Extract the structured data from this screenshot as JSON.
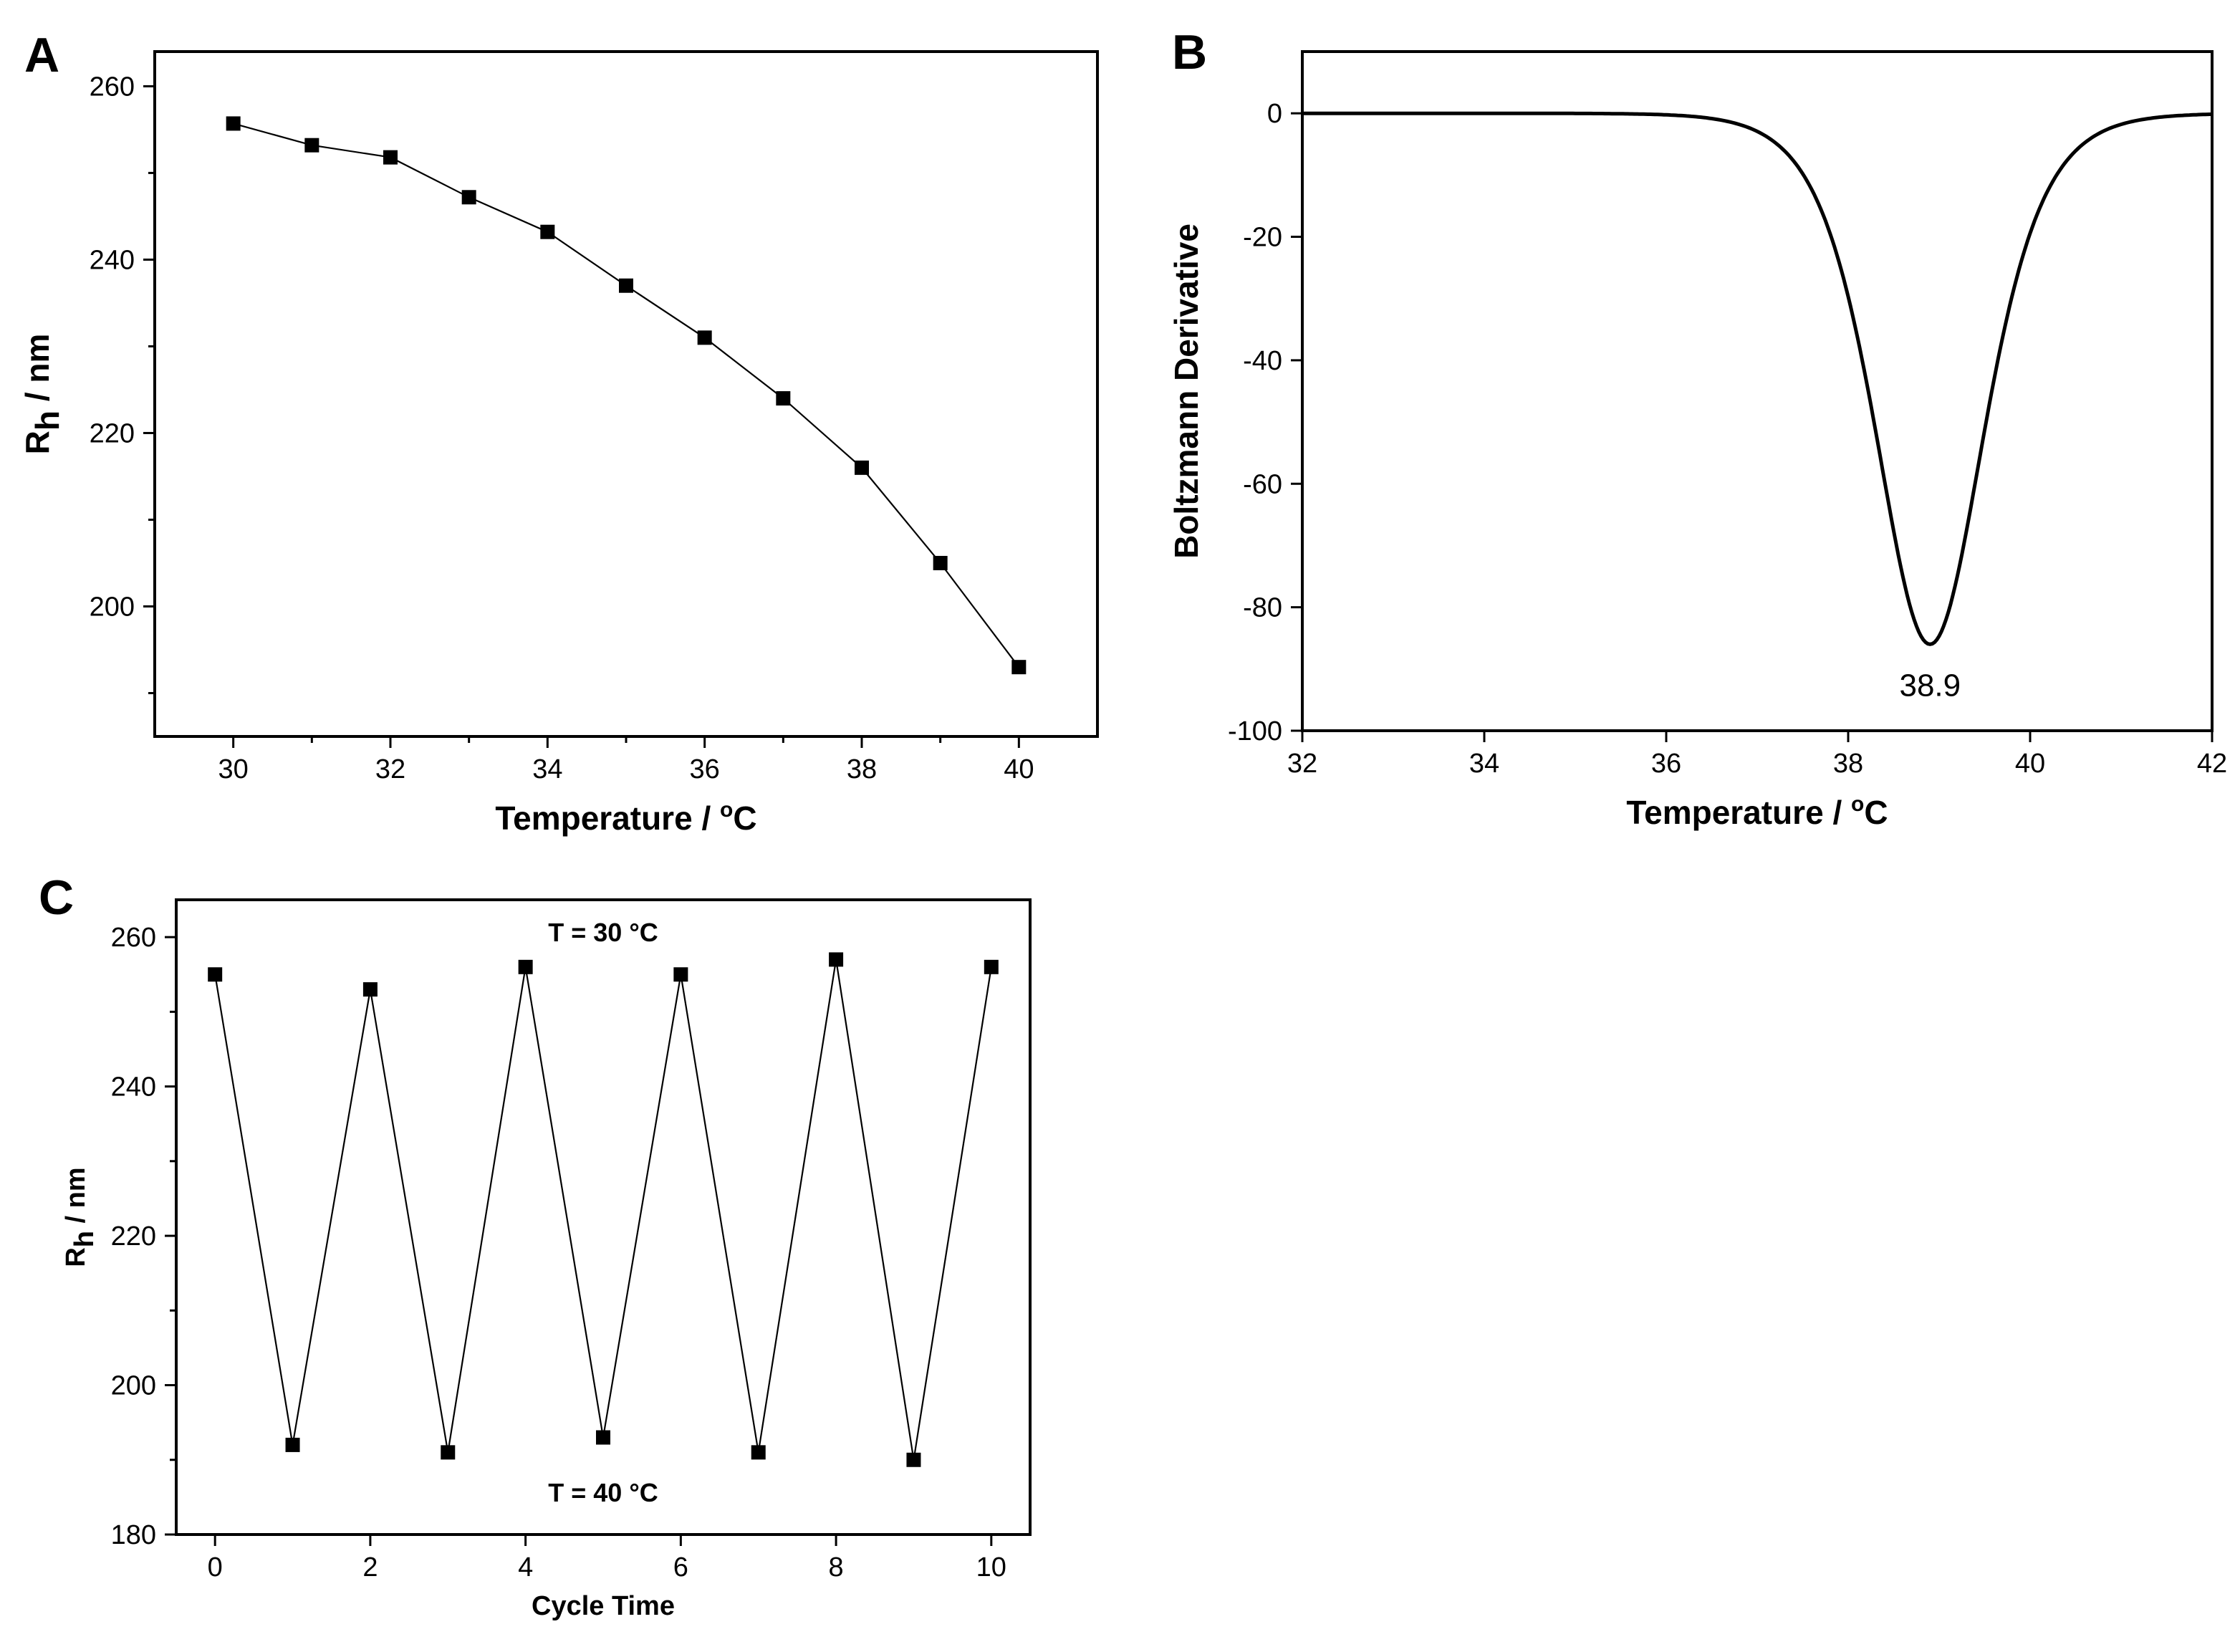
{
  "chart_data": [
    {
      "panel": "A",
      "type": "line",
      "marker": "square",
      "x": [
        30,
        31,
        32,
        33,
        34,
        35,
        36,
        37,
        38,
        39,
        40
      ],
      "y": [
        255.7,
        253.2,
        251.8,
        247.2,
        243.2,
        237.0,
        231.0,
        224.0,
        216.0,
        205.0,
        193.0
      ],
      "xlim": [
        29,
        41
      ],
      "ylim": [
        185,
        264
      ],
      "xticks": [
        30,
        32,
        34,
        36,
        38,
        40
      ],
      "xticks_minor": [
        31,
        33,
        35,
        37,
        39
      ],
      "yticks": [
        200,
        220,
        240,
        260
      ],
      "yticks_minor": [
        190,
        210,
        230,
        250
      ],
      "xlabel": "Temperature / ",
      "xlabel_unit": "C",
      "xlabel_degree": "o",
      "ylabel": "R",
      "ylabel_sub": "h",
      "ylabel_rest": " / nm"
    },
    {
      "panel": "B",
      "type": "line",
      "function": "Boltzmann derivative (Gaussian-like dip)",
      "xc": 38.9,
      "min_value": -86,
      "width": 0.8,
      "xlim": [
        32,
        42
      ],
      "ylim": [
        -100,
        10
      ],
      "xticks": [
        32,
        34,
        36,
        38,
        40,
        42
      ],
      "yticks": [
        0,
        -20,
        -40,
        -60,
        -80,
        -100
      ],
      "xlabel": "Temperature / ",
      "xlabel_unit": "C",
      "xlabel_degree": "o",
      "ylabel": "Boltzmann Derivative",
      "annotation": "38.9"
    },
    {
      "panel": "C",
      "type": "line",
      "marker": "square",
      "x": [
        0,
        1,
        2,
        3,
        4,
        5,
        6,
        7,
        8,
        9,
        10
      ],
      "y": [
        255,
        192,
        253,
        191,
        256,
        193,
        255,
        191,
        257,
        190,
        256
      ],
      "xlim": [
        -0.5,
        10.5
      ],
      "ylim": [
        180,
        265
      ],
      "xticks": [
        0,
        2,
        4,
        6,
        8,
        10
      ],
      "yticks": [
        180,
        200,
        220,
        240,
        260
      ],
      "yticks_minor": [
        190,
        210,
        230,
        250
      ],
      "xlabel": "Cycle Time",
      "ylabel": "R",
      "ylabel_sub": "h",
      "ylabel_rest": " / nm",
      "annotation_top": "T = 30 °C",
      "annotation_bottom": "T = 40 °C"
    }
  ]
}
